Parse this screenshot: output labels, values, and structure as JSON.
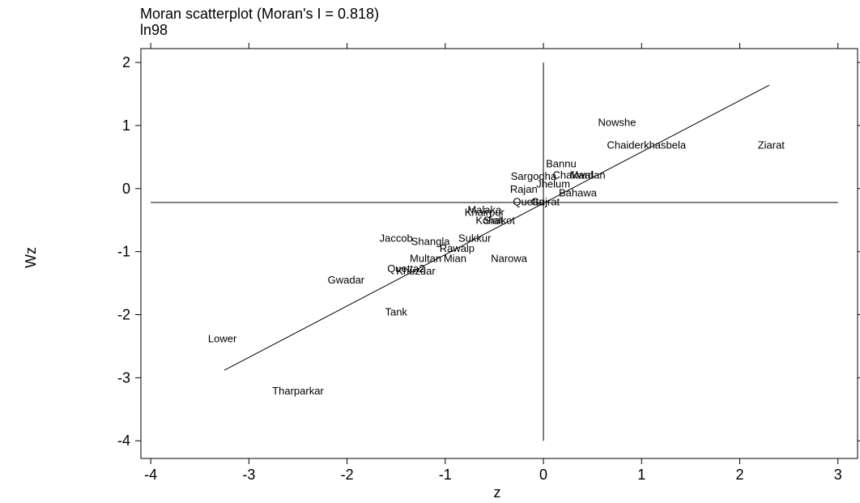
{
  "chart_data": {
    "type": "scatter",
    "title": "Moran scatterplot (Moran's I = 0.818)",
    "subtitle": "ln98",
    "xlabel": "z",
    "ylabel": "Wz",
    "xlim": [
      -4.1,
      3.2
    ],
    "ylim": [
      -4.28,
      2.22
    ],
    "xticks": [
      -4,
      -3,
      -2,
      -1,
      0,
      1,
      2,
      3
    ],
    "yticks": [
      -4,
      -3,
      -2,
      -1,
      0,
      1,
      2
    ],
    "xtick_labels": [
      "-4",
      "-3",
      "-2",
      "-1",
      "0",
      "1",
      "2",
      "3"
    ],
    "ytick_labels": [
      "-4",
      "-3",
      "-2",
      "-1",
      "0",
      "1",
      "2"
    ],
    "moran_i": 0.818,
    "reference_lines": {
      "x": 0,
      "y": -0.22
    },
    "regression_line": {
      "x1": -3.25,
      "y1": -2.88,
      "x2": 2.3,
      "y2": 1.64
    },
    "grid": false,
    "legend": "none",
    "points": [
      {
        "label": "Nowshe",
        "x": 0.75,
        "y": 1.06
      },
      {
        "label": "Ziarat",
        "x": 2.32,
        "y": 0.7
      },
      {
        "label": "Chaiderkhasbela",
        "x": 1.05,
        "y": 0.7
      },
      {
        "label": "Bannu",
        "x": 0.18,
        "y": 0.4
      },
      {
        "label": "Sargodha",
        "x": -0.1,
        "y": 0.2
      },
      {
        "label": "Chakwal",
        "x": 0.3,
        "y": 0.22
      },
      {
        "label": "Mardan",
        "x": 0.45,
        "y": 0.22
      },
      {
        "label": "Jhelum",
        "x": 0.1,
        "y": 0.08
      },
      {
        "label": "Rajan",
        "x": -0.2,
        "y": 0.0
      },
      {
        "label": "Bahawa",
        "x": 0.35,
        "y": -0.06
      },
      {
        "label": "Quetta",
        "x": -0.15,
        "y": -0.2
      },
      {
        "label": "Gujrat",
        "x": 0.02,
        "y": -0.2
      },
      {
        "label": "Khairpur",
        "x": -0.6,
        "y": -0.37
      },
      {
        "label": "Malaka",
        "x": -0.6,
        "y": -0.33
      },
      {
        "label": "Kohat",
        "x": -0.55,
        "y": -0.5
      },
      {
        "label": "Sialkot",
        "x": -0.45,
        "y": -0.5
      },
      {
        "label": "Jaccob",
        "x": -1.5,
        "y": -0.78
      },
      {
        "label": "Shangla",
        "x": -1.15,
        "y": -0.83
      },
      {
        "label": "Sukkur",
        "x": -0.7,
        "y": -0.78
      },
      {
        "label": "Rawalp",
        "x": -0.88,
        "y": -0.94
      },
      {
        "label": "Multan",
        "x": -1.2,
        "y": -1.1
      },
      {
        "label": "Mian",
        "x": -0.9,
        "y": -1.1
      },
      {
        "label": "Narowa",
        "x": -0.35,
        "y": -1.1
      },
      {
        "label": "Quetta2",
        "x": -1.4,
        "y": -1.26
      },
      {
        "label": "Khuzdar",
        "x": -1.3,
        "y": -1.3
      },
      {
        "label": "Gwadar",
        "x": -2.01,
        "y": -1.44
      },
      {
        "label": "Tank",
        "x": -1.5,
        "y": -1.95
      },
      {
        "label": "Lower",
        "x": -3.27,
        "y": -2.37
      },
      {
        "label": "Tharparkar",
        "x": -2.5,
        "y": -3.2
      }
    ]
  }
}
